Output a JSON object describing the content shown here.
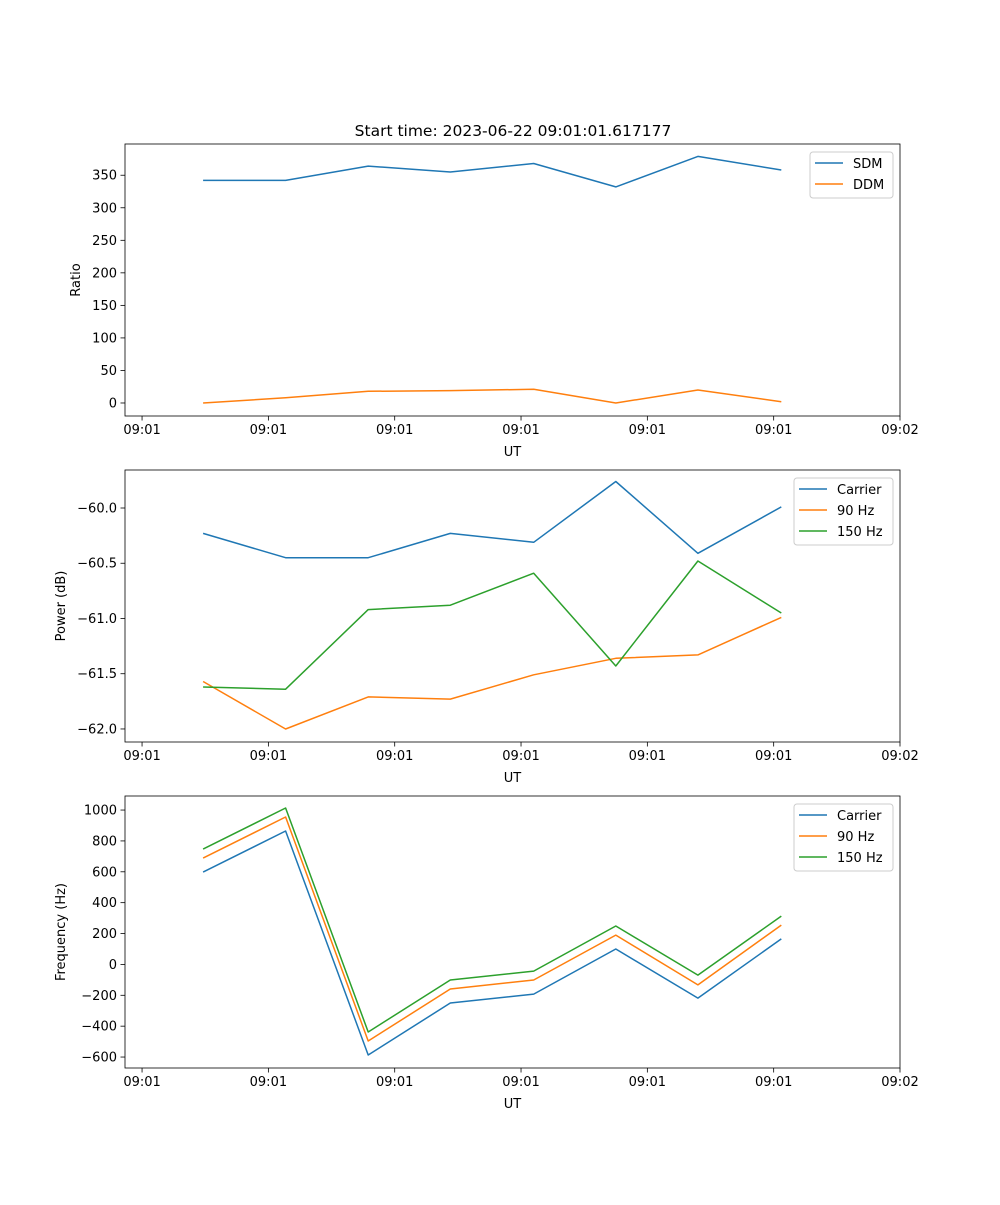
{
  "title": "Start time: 2023-06-22 09:01:01.617177",
  "chart_data": [
    {
      "type": "line",
      "xlabel": "UT",
      "ylabel": "Ratio",
      "x": [
        4.83,
        11.36,
        17.9,
        24.4,
        31.0,
        37.5,
        44.0,
        50.6
      ],
      "xlim": [
        -1.35,
        60
      ],
      "xticks": [
        0,
        10,
        20,
        30,
        40,
        50,
        60
      ],
      "xticklabels": [
        "09:01",
        "09:01",
        "09:01",
        "09:01",
        "09:01",
        "09:01",
        "09:02"
      ],
      "ylim": [
        -20,
        398
      ],
      "yticks": [
        0,
        50,
        100,
        150,
        200,
        250,
        300,
        350
      ],
      "yticklabels": [
        "0",
        "50",
        "100",
        "150",
        "200",
        "250",
        "300",
        "350"
      ],
      "legend_position": "top-right",
      "series": [
        {
          "name": "SDM",
          "color": "#1f77b4",
          "values": [
            342,
            342,
            364,
            355,
            368,
            332,
            379,
            358
          ]
        },
        {
          "name": "DDM",
          "color": "#ff7f0e",
          "values": [
            0,
            8,
            18,
            19,
            21,
            0,
            20,
            2
          ]
        }
      ]
    },
    {
      "type": "line",
      "xlabel": "UT",
      "ylabel": "Power (dB)",
      "x": [
        4.83,
        11.36,
        17.9,
        24.4,
        31.0,
        37.5,
        44.0,
        50.6
      ],
      "xlim": [
        -1.35,
        60
      ],
      "xticks": [
        0,
        10,
        20,
        30,
        40,
        50,
        60
      ],
      "xticklabels": [
        "09:01",
        "09:01",
        "09:01",
        "09:01",
        "09:01",
        "09:01",
        "09:02"
      ],
      "ylim": [
        -62.118,
        -59.656
      ],
      "yticks": [
        -62.0,
        -61.5,
        -61.0,
        -60.5,
        -60.0
      ],
      "yticklabels": [
        "−62.0",
        "−61.5",
        "−61.0",
        "−60.5",
        "−60.0"
      ],
      "legend_position": "top-right",
      "series": [
        {
          "name": "Carrier",
          "color": "#1f77b4",
          "values": [
            -60.23,
            -60.45,
            -60.45,
            -60.23,
            -60.31,
            -59.76,
            -60.41,
            -59.99
          ]
        },
        {
          "name": "90 Hz",
          "color": "#ff7f0e",
          "values": [
            -61.57,
            -62.0,
            -61.71,
            -61.73,
            -61.51,
            -61.36,
            -61.33,
            -60.99
          ]
        },
        {
          "name": "150 Hz",
          "color": "#2ca02c",
          "values": [
            -61.62,
            -61.64,
            -60.92,
            -60.88,
            -60.59,
            -61.43,
            -60.48,
            -60.95
          ]
        }
      ]
    },
    {
      "type": "line",
      "xlabel": "UT",
      "ylabel": "Frequency (Hz)",
      "x": [
        4.83,
        11.36,
        17.9,
        24.4,
        31.0,
        37.5,
        44.0,
        50.6
      ],
      "xlim": [
        -1.35,
        60
      ],
      "xticks": [
        0,
        10,
        20,
        30,
        40,
        50,
        60
      ],
      "xticklabels": [
        "09:01",
        "09:01",
        "09:01",
        "09:01",
        "09:01",
        "09:01",
        "09:02"
      ],
      "ylim": [
        -671,
        1091
      ],
      "yticks": [
        -600,
        -400,
        -200,
        0,
        200,
        400,
        600,
        800,
        1000
      ],
      "yticklabels": [
        "−600",
        "−400",
        "−200",
        "0",
        "200",
        "400",
        "600",
        "800",
        "1000"
      ],
      "legend_position": "top-right",
      "series": [
        {
          "name": "Carrier",
          "color": "#1f77b4",
          "values": [
            598,
            864,
            -587,
            -250,
            -192,
            100,
            -218,
            165
          ]
        },
        {
          "name": "90 Hz",
          "color": "#ff7f0e",
          "values": [
            689,
            955,
            -496,
            -159,
            -101,
            190,
            -133,
            255
          ]
        },
        {
          "name": "150 Hz",
          "color": "#2ca02c",
          "values": [
            747,
            1013,
            -438,
            -101,
            -43,
            249,
            -69,
            313
          ]
        }
      ]
    }
  ]
}
